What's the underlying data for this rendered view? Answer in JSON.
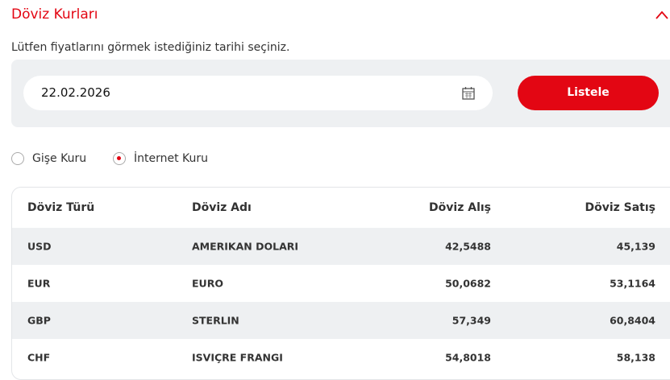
{
  "header": {
    "title": "Döviz Kurları"
  },
  "form": {
    "instruction": "Lütfen fiyatlarını görmek istediğiniz tarihi seçiniz.",
    "date": "22.02.2026",
    "button": "Listele"
  },
  "rate_types": [
    "Gişe Kuru",
    "İnternet Kuru"
  ],
  "table": {
    "columns": [
      "Döviz Türü",
      "Döviz Adı",
      "Döviz Alış",
      "Döviz Satış"
    ],
    "rows": [
      [
        "USD",
        "AMERIKAN DOLARI",
        "42,5488",
        "45,139"
      ],
      [
        "EUR",
        "EURO",
        "50,0682",
        "53,1164"
      ],
      [
        "GBP",
        "STERLIN",
        "57,349",
        "60,8404"
      ],
      [
        "CHF",
        "ISVIÇRE FRANGI",
        "54,8018",
        "58,138"
      ]
    ]
  }
}
